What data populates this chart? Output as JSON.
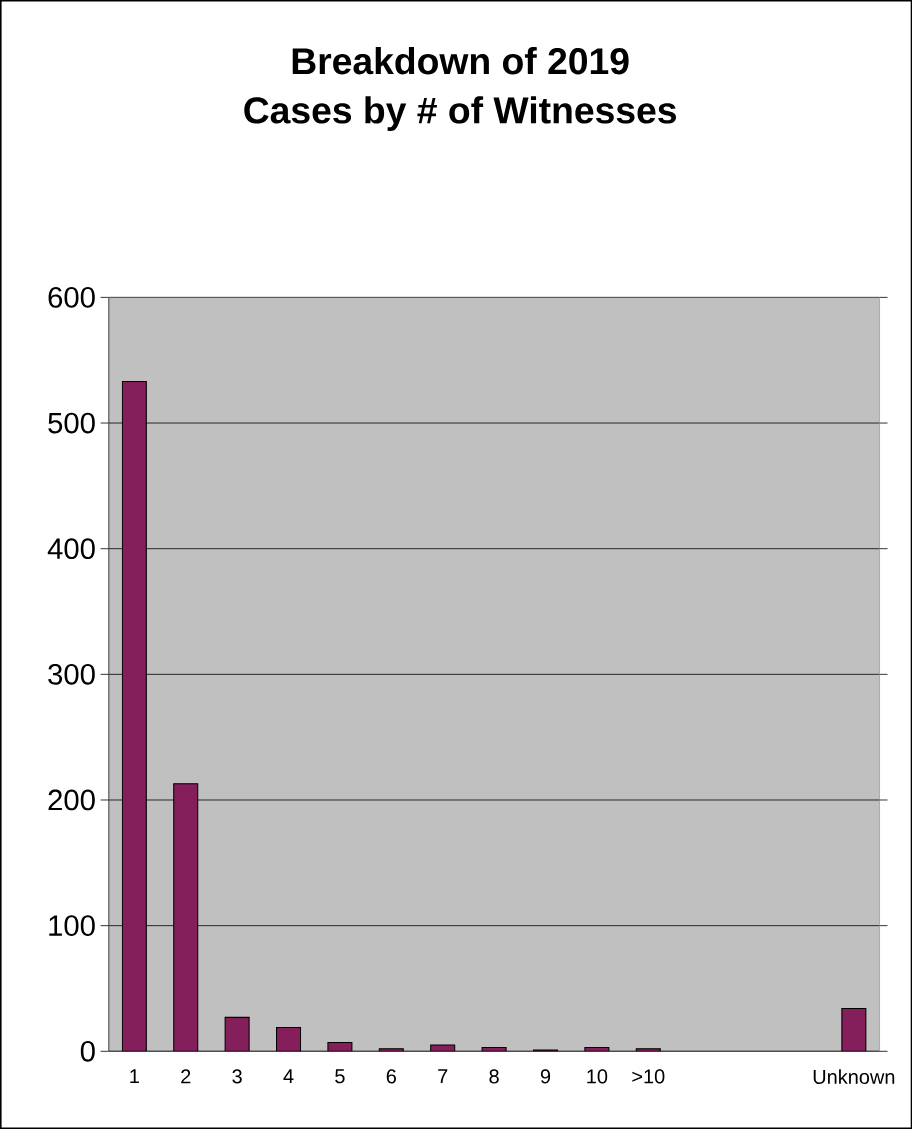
{
  "chart_data": {
    "type": "bar",
    "title": "Breakdown of 2019",
    "subtitle": "Cases by # of Witnesses",
    "categories": [
      "1",
      "2",
      "3",
      "4",
      "5",
      "6",
      "7",
      "8",
      "9",
      "10",
      ">10",
      null,
      null,
      null,
      "Unknown"
    ],
    "values": [
      533,
      213,
      27,
      19,
      7,
      2,
      5,
      3,
      1,
      3,
      2,
      null,
      null,
      null,
      34
    ],
    "color": "#841f5c",
    "ylim": [
      0,
      600
    ],
    "yticks": [
      0,
      100,
      200,
      300,
      400,
      500,
      600
    ],
    "grid": "y"
  }
}
